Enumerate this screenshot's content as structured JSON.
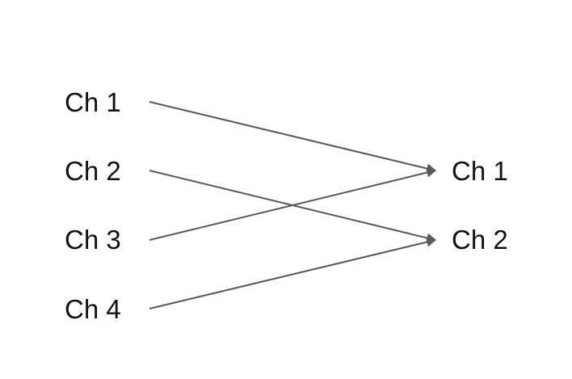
{
  "diagram": {
    "inputs": [
      {
        "id": "in1",
        "label": "Ch 1"
      },
      {
        "id": "in2",
        "label": "Ch 2"
      },
      {
        "id": "in3",
        "label": "Ch 3"
      },
      {
        "id": "in4",
        "label": "Ch 4"
      }
    ],
    "outputs": [
      {
        "id": "out1",
        "label": "Ch 1"
      },
      {
        "id": "out2",
        "label": "Ch 2"
      }
    ],
    "connections": [
      {
        "from": "in1",
        "to": "out1"
      },
      {
        "from": "in2",
        "to": "out2"
      },
      {
        "from": "in3",
        "to": "out1"
      },
      {
        "from": "in4",
        "to": "out2"
      }
    ],
    "line_color": "#595959",
    "text_color": "#111111"
  }
}
